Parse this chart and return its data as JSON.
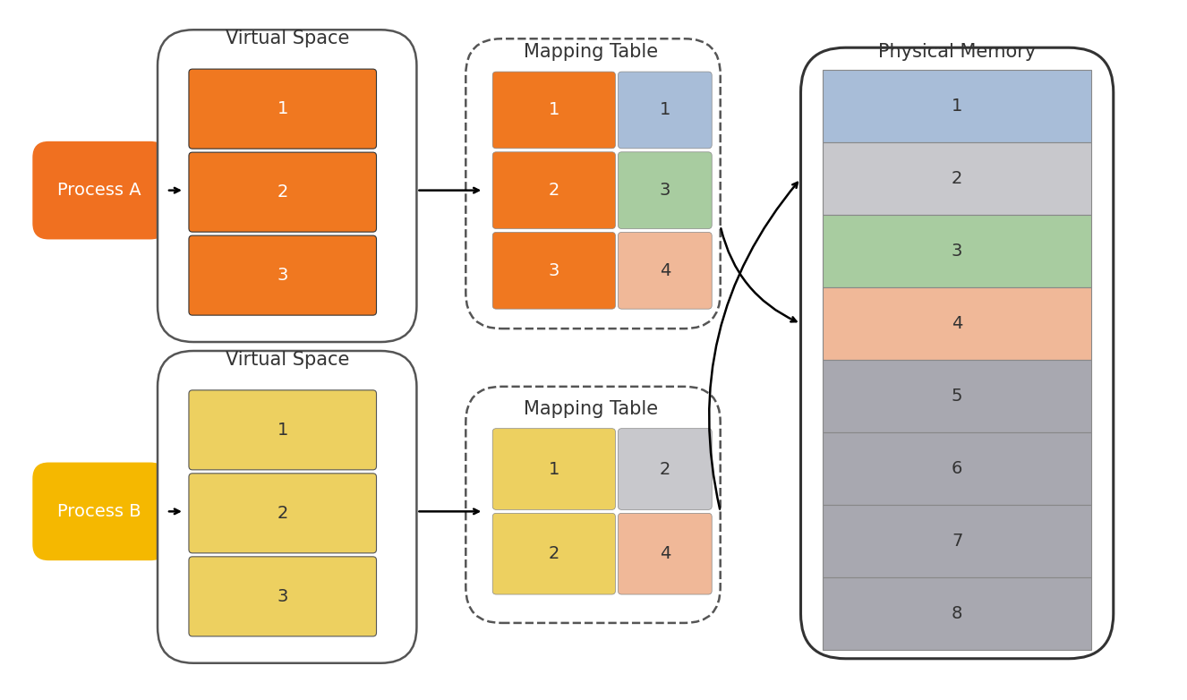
{
  "bg_color": "#ffffff",
  "title_phys": "Physical Memory",
  "title_vs_a": "Virtual Space",
  "title_vs_b": "Virtual Space",
  "title_map_a": "Mapping Table",
  "title_map_b": "Mapping Table",
  "proc_a_label": "Process A",
  "proc_b_label": "Process B",
  "proc_a_color": "#F07020",
  "proc_b_color": "#F5B800",
  "vs_a_color": "#F07820",
  "vs_b_color": "#EDD060",
  "vs_a_rows": [
    "1",
    "2",
    "3"
  ],
  "vs_b_rows": [
    "1",
    "2",
    "3"
  ],
  "map_a_left_color": "#F07820",
  "map_a_right_colors": [
    "#A8BDD8",
    "#A8CCA0",
    "#F0B898"
  ],
  "map_b_left_color": "#EDD060",
  "map_b_right_colors": [
    "#C8C8CC",
    "#F0B898"
  ],
  "map_a_rows": [
    [
      "1",
      "1"
    ],
    [
      "2",
      "3"
    ],
    [
      "3",
      "4"
    ]
  ],
  "map_b_rows": [
    [
      "1",
      "2"
    ],
    [
      "2",
      "4"
    ]
  ],
  "phys_colors": [
    "#A8BDD8",
    "#C8C8CC",
    "#A8CCA0",
    "#F0B898",
    "#A8A8B0",
    "#A8A8B0",
    "#A8A8B0",
    "#A8A8B0"
  ],
  "phys_labels": [
    "1",
    "2",
    "3",
    "4",
    "5",
    "6",
    "7",
    "8"
  ],
  "font_color": "#333333",
  "font_size_label": 14,
  "font_size_title": 15,
  "font_size_num": 14
}
